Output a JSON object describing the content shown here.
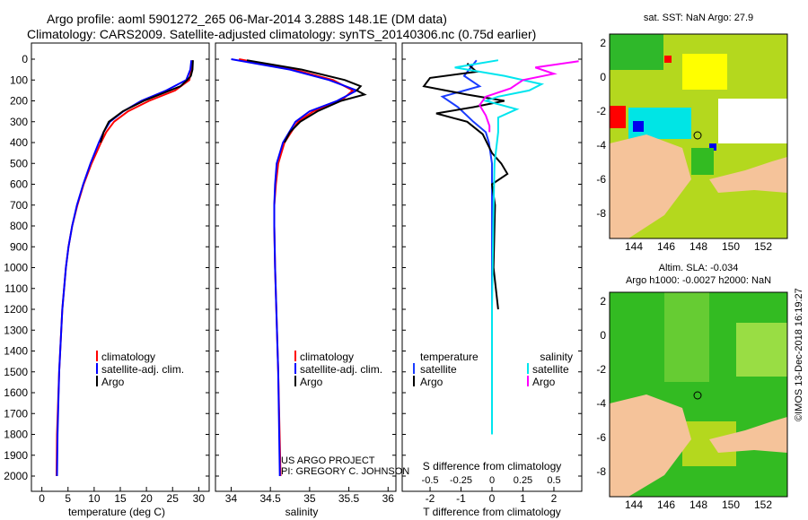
{
  "title": {
    "line1": "Argo profile: aoml 5901272_265 06-Mar-2014 3.288S 148.1E (DM data)",
    "line2": "Climatology: CARS2009. Satellite-adjusted climatology: synTS_20140306.nc (0.75d earlier)"
  },
  "colors": {
    "climatology": "#ff0000",
    "satellite": "#0000ff",
    "argo": "#000000",
    "sat_temp": "#1a3cff",
    "sat_sal": "#00e5ee",
    "argo_sal": "#ff00ff",
    "land": "#f5c39a",
    "sea_green": "#33bb22"
  },
  "chart_data": [
    {
      "type": "line",
      "name": "temperature-profile",
      "xlabel": "temperature (deg C)",
      "x_ticks": [
        "0",
        "5",
        "10",
        "15",
        "20",
        "25",
        "30"
      ],
      "y_ticks": [
        "0",
        "100",
        "200",
        "300",
        "400",
        "500",
        "600",
        "700",
        "800",
        "900",
        "1000",
        "1100",
        "1200",
        "1300",
        "1400",
        "1500",
        "1600",
        "1700",
        "1800",
        "1900",
        "2000"
      ],
      "xlim": [
        -2,
        32
      ],
      "ylim": [
        2050,
        0
      ],
      "legend": [
        "climatology",
        "satellite-adj. clim.",
        "Argo"
      ],
      "series": [
        {
          "name": "climatology",
          "depth": [
            5,
            50,
            100,
            150,
            200,
            250,
            300,
            350,
            400,
            500,
            600,
            700,
            800,
            900,
            1000,
            1200,
            1500,
            1800,
            2000
          ],
          "values": [
            28.8,
            28.6,
            28.2,
            25.5,
            20.5,
            16.5,
            13.8,
            12.3,
            11.3,
            9.5,
            8.0,
            6.8,
            5.8,
            5.1,
            4.6,
            3.9,
            3.3,
            2.9,
            2.8
          ]
        },
        {
          "name": "satellite-adj. clim.",
          "depth": [
            5,
            50,
            100,
            150,
            200,
            250,
            300,
            350,
            400,
            500,
            600,
            700,
            800,
            900,
            1000,
            1200,
            1500,
            1800,
            2000
          ],
          "values": [
            28.6,
            28.4,
            27.6,
            23.8,
            19.0,
            15.6,
            13.0,
            11.8,
            10.9,
            9.3,
            7.9,
            6.7,
            5.8,
            5.1,
            4.6,
            3.9,
            3.3,
            3.0,
            2.9
          ]
        },
        {
          "name": "Argo",
          "depth": [
            5,
            50,
            80,
            100,
            130,
            160,
            200,
            250,
            300,
            350,
            400
          ],
          "values": [
            28.9,
            28.8,
            28.5,
            27.8,
            26.5,
            23.5,
            19.5,
            15.5,
            12.8,
            11.8,
            11.2
          ]
        }
      ]
    },
    {
      "type": "line",
      "name": "salinity-profile",
      "xlabel": "salinity",
      "x_ticks": [
        "34",
        "34.5",
        "35",
        "35.5",
        "36"
      ],
      "xlim": [
        33.8,
        36.1
      ],
      "ylim": [
        2050,
        0
      ],
      "legend": [
        "climatology",
        "satellite-adj. clim.",
        "Argo"
      ],
      "series": [
        {
          "name": "climatology",
          "depth": [
            0,
            50,
            100,
            150,
            200,
            250,
            300,
            400,
            500,
            600,
            700,
            800,
            1000,
            1500,
            2000
          ],
          "values": [
            34.1,
            34.8,
            35.3,
            35.55,
            35.4,
            35.05,
            34.85,
            34.68,
            34.6,
            34.57,
            34.55,
            34.55,
            34.56,
            34.6,
            34.63
          ]
        },
        {
          "name": "satellite-adj. clim.",
          "depth": [
            0,
            50,
            100,
            150,
            200,
            250,
            300,
            400,
            500,
            600,
            700,
            800,
            1000,
            1500,
            2000
          ],
          "values": [
            34.0,
            34.75,
            35.25,
            35.6,
            35.35,
            35.0,
            34.82,
            34.66,
            34.58,
            34.56,
            34.55,
            34.55,
            34.56,
            34.6,
            34.62
          ]
        },
        {
          "name": "Argo",
          "depth": [
            5,
            50,
            100,
            130,
            150,
            170,
            200,
            250,
            300,
            350,
            400
          ],
          "values": [
            34.2,
            34.9,
            35.45,
            35.65,
            35.6,
            35.7,
            35.4,
            35.1,
            34.88,
            34.75,
            34.68
          ]
        }
      ]
    },
    {
      "type": "line",
      "name": "difference-profile",
      "xlabel": "T difference from climatology",
      "x2label": "S difference from climatology",
      "x_ticks": [
        "-2",
        "-1",
        "0",
        "1",
        "2"
      ],
      "x2_ticks": [
        "-0.5",
        "-0.25",
        "0",
        "0.25",
        "0.5"
      ],
      "xlim": [
        -2.9,
        2.9
      ],
      "ylim": [
        2050,
        0
      ],
      "legend_left_title": "temperature",
      "legend_right_title": "salinity",
      "legend_left": [
        "satellite",
        "Argo"
      ],
      "legend_right": [
        "satellite",
        "Argo"
      ],
      "series": [
        {
          "name": "temperature satellite",
          "depth": [
            5,
            80,
            130,
            180,
            230,
            300,
            350,
            400,
            500,
            700,
            1000,
            1500,
            1800
          ],
          "values": [
            -0.5,
            -0.9,
            -0.4,
            -1.6,
            -1.1,
            -0.6,
            -0.2,
            -0.1,
            0.0,
            0.0,
            0.0,
            0.0,
            0.0
          ]
        },
        {
          "name": "temperature Argo",
          "depth": [
            20,
            60,
            90,
            130,
            170,
            200,
            230,
            260,
            300,
            360,
            450,
            500,
            550,
            600,
            700,
            1000,
            1200
          ],
          "values": [
            -0.8,
            -0.5,
            -2.0,
            -2.2,
            -0.8,
            0.4,
            -0.6,
            -1.8,
            -0.8,
            -0.3,
            0.0,
            0.3,
            0.5,
            0.0,
            0.1,
            0.05,
            0.2
          ]
        },
        {
          "name": "salinity satellite",
          "depth": [
            5,
            40,
            80,
            120,
            150,
            180,
            200,
            240,
            280,
            350,
            500,
            800,
            1200,
            1800
          ],
          "values": [
            0.05,
            -0.3,
            0.1,
            0.4,
            0.3,
            0.05,
            -0.05,
            0.2,
            0.05,
            0.05,
            0.02,
            0.01,
            0.0,
            0.0
          ]
        },
        {
          "name": "salinity Argo",
          "depth": [
            10,
            40,
            70,
            100,
            140,
            180,
            220,
            270,
            320,
            350
          ],
          "values": [
            0.7,
            0.35,
            0.5,
            0.25,
            0.15,
            -0.05,
            -0.1,
            -0.05,
            -0.02,
            -0.02
          ]
        }
      ]
    }
  ],
  "maps": {
    "sst_title": "sat. SST: NaN Argo: 27.9",
    "sla_title1": "Altim. SLA: -0.034",
    "sla_title2": "Argo h1000: -0.0027 h2000: NaN",
    "lon_ticks": [
      "144",
      "146",
      "148",
      "150",
      "152"
    ],
    "lat_ticks": [
      "2",
      "0",
      "-2",
      "-4",
      "-6",
      "-8"
    ]
  },
  "credit": {
    "line1": "US ARGO PROJECT",
    "line2": "PI: GREGORY C. JOHNSON"
  },
  "watermark": "©IMOS 13-Dec-2018 16:19:27"
}
